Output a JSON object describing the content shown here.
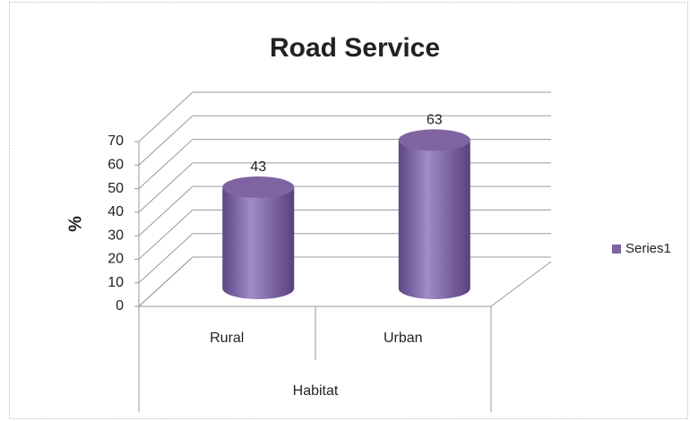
{
  "chart_data": {
    "type": "cylinder",
    "title": "Road Service",
    "categories": [
      "Rural",
      "Urban"
    ],
    "series": [
      {
        "name": "Series1",
        "color": "#8064a2",
        "values": [
          43,
          63
        ]
      }
    ],
    "ylabel": "%",
    "xlabel": "Habitat",
    "ylim": [
      0,
      70
    ],
    "yticks": [
      0,
      10,
      20,
      30,
      40,
      50,
      60,
      70
    ],
    "grid": true,
    "legend": "right"
  }
}
